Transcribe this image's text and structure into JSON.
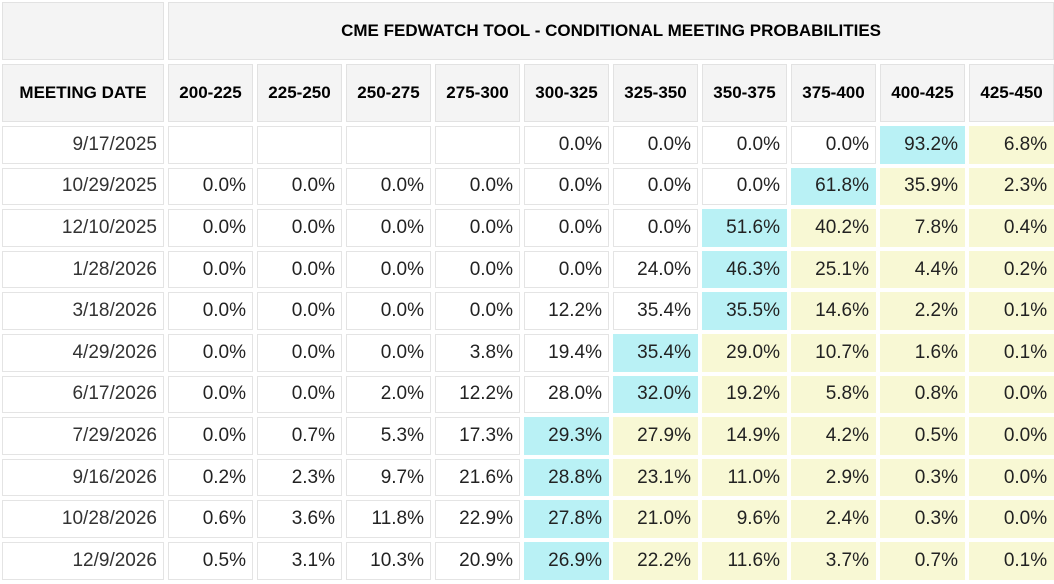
{
  "title": "CME FEDWATCH TOOL - CONDITIONAL MEETING PROBABILITIES",
  "date_header": "MEETING DATE",
  "colors": {
    "max_cell": "#b9f1f5",
    "high_cell": "#f8f8d4",
    "header_bg": "#f4f4f4"
  },
  "columns": [
    "200-225",
    "225-250",
    "250-275",
    "275-300",
    "300-325",
    "325-350",
    "350-375",
    "375-400",
    "400-425",
    "425-450"
  ],
  "rows": [
    {
      "date": "9/17/2025",
      "values": [
        "",
        "",
        "",
        "",
        "0.0%",
        "0.0%",
        "0.0%",
        "0.0%",
        "93.2%",
        "6.8%"
      ],
      "styles": [
        "",
        "",
        "",
        "",
        "",
        "",
        "",
        "",
        "max",
        "hl"
      ]
    },
    {
      "date": "10/29/2025",
      "values": [
        "0.0%",
        "0.0%",
        "0.0%",
        "0.0%",
        "0.0%",
        "0.0%",
        "0.0%",
        "61.8%",
        "35.9%",
        "2.3%"
      ],
      "styles": [
        "",
        "",
        "",
        "",
        "",
        "",
        "",
        "max",
        "hl",
        "hl"
      ]
    },
    {
      "date": "12/10/2025",
      "values": [
        "0.0%",
        "0.0%",
        "0.0%",
        "0.0%",
        "0.0%",
        "0.0%",
        "51.6%",
        "40.2%",
        "7.8%",
        "0.4%"
      ],
      "styles": [
        "",
        "",
        "",
        "",
        "",
        "",
        "max",
        "hl",
        "hl",
        "hl"
      ]
    },
    {
      "date": "1/28/2026",
      "values": [
        "0.0%",
        "0.0%",
        "0.0%",
        "0.0%",
        "0.0%",
        "24.0%",
        "46.3%",
        "25.1%",
        "4.4%",
        "0.2%"
      ],
      "styles": [
        "",
        "",
        "",
        "",
        "",
        "",
        "max",
        "hl",
        "hl",
        "hl"
      ]
    },
    {
      "date": "3/18/2026",
      "values": [
        "0.0%",
        "0.0%",
        "0.0%",
        "0.0%",
        "12.2%",
        "35.4%",
        "35.5%",
        "14.6%",
        "2.2%",
        "0.1%"
      ],
      "styles": [
        "",
        "",
        "",
        "",
        "",
        "",
        "max",
        "hl",
        "hl",
        "hl"
      ]
    },
    {
      "date": "4/29/2026",
      "values": [
        "0.0%",
        "0.0%",
        "0.0%",
        "3.8%",
        "19.4%",
        "35.4%",
        "29.0%",
        "10.7%",
        "1.6%",
        "0.1%"
      ],
      "styles": [
        "",
        "",
        "",
        "",
        "",
        "max",
        "hl",
        "hl",
        "hl",
        "hl"
      ]
    },
    {
      "date": "6/17/2026",
      "values": [
        "0.0%",
        "0.0%",
        "2.0%",
        "12.2%",
        "28.0%",
        "32.0%",
        "19.2%",
        "5.8%",
        "0.8%",
        "0.0%"
      ],
      "styles": [
        "",
        "",
        "",
        "",
        "",
        "max",
        "hl",
        "hl",
        "hl",
        "hl"
      ]
    },
    {
      "date": "7/29/2026",
      "values": [
        "0.0%",
        "0.7%",
        "5.3%",
        "17.3%",
        "29.3%",
        "27.9%",
        "14.9%",
        "4.2%",
        "0.5%",
        "0.0%"
      ],
      "styles": [
        "",
        "",
        "",
        "",
        "max",
        "hl",
        "hl",
        "hl",
        "hl",
        "hl"
      ]
    },
    {
      "date": "9/16/2026",
      "values": [
        "0.2%",
        "2.3%",
        "9.7%",
        "21.6%",
        "28.8%",
        "23.1%",
        "11.0%",
        "2.9%",
        "0.3%",
        "0.0%"
      ],
      "styles": [
        "",
        "",
        "",
        "",
        "max",
        "hl",
        "hl",
        "hl",
        "hl",
        "hl"
      ]
    },
    {
      "date": "10/28/2026",
      "values": [
        "0.6%",
        "3.6%",
        "11.8%",
        "22.9%",
        "27.8%",
        "21.0%",
        "9.6%",
        "2.4%",
        "0.3%",
        "0.0%"
      ],
      "styles": [
        "",
        "",
        "",
        "",
        "max",
        "hl",
        "hl",
        "hl",
        "hl",
        "hl"
      ]
    },
    {
      "date": "12/9/2026",
      "values": [
        "0.5%",
        "3.1%",
        "10.3%",
        "20.9%",
        "26.9%",
        "22.2%",
        "11.6%",
        "3.7%",
        "0.7%",
        "0.1%"
      ],
      "styles": [
        "",
        "",
        "",
        "",
        "max",
        "hl",
        "hl",
        "hl",
        "hl",
        "hl"
      ]
    }
  ]
}
